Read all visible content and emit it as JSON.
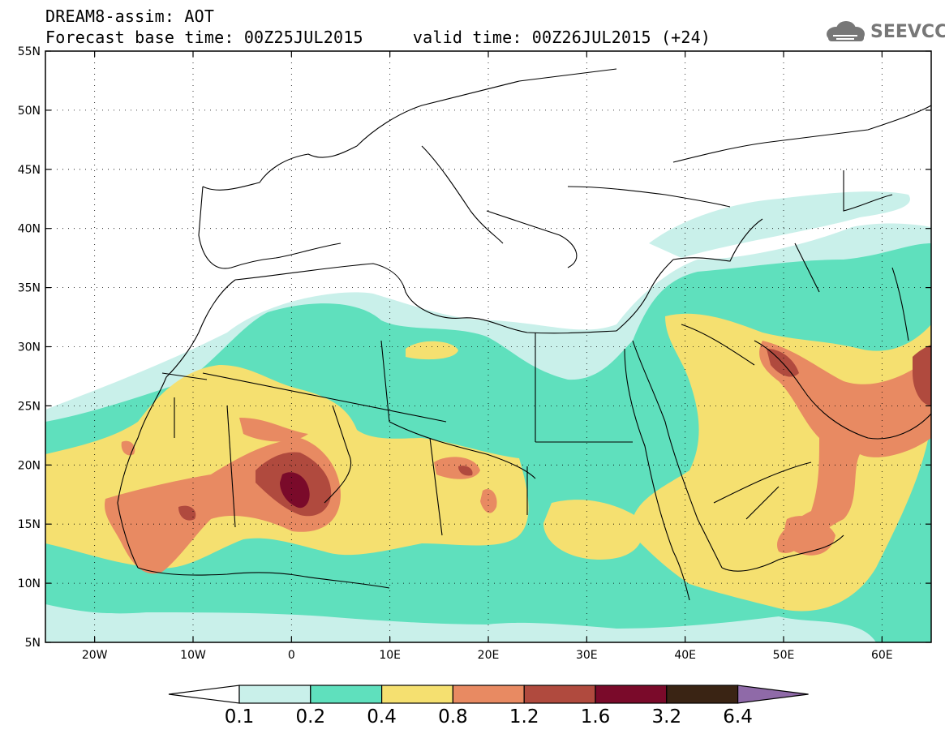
{
  "header": {
    "title_line1": "DREAM8-assim: AOT",
    "title_line2": "Forecast base time: 00Z25JUL2015     valid time: 00Z26JUL2015 (+24)"
  },
  "logo": {
    "text": "SEEVCCC",
    "icon": "cloud-icon"
  },
  "map": {
    "lon_range": [
      -25,
      65
    ],
    "lat_range": [
      5,
      55
    ],
    "lat_ticks": [
      "55N",
      "50N",
      "45N",
      "40N",
      "35N",
      "30N",
      "25N",
      "20N",
      "15N",
      "10N",
      "5N"
    ],
    "lon_ticks": [
      "20W",
      "10W",
      "0",
      "10E",
      "20E",
      "30E",
      "40E",
      "50E",
      "60E"
    ]
  },
  "colorbar": {
    "labels": [
      "0.1",
      "0.2",
      "0.4",
      "0.8",
      "1.2",
      "1.6",
      "3.2",
      "6.4"
    ],
    "colors": [
      "#ffffff",
      "#c9f0ea",
      "#5fe0bd",
      "#f5e070",
      "#e88a62",
      "#b04a3e",
      "#7a0a2a",
      "#3a2414",
      "#8f6aa8"
    ]
  }
}
